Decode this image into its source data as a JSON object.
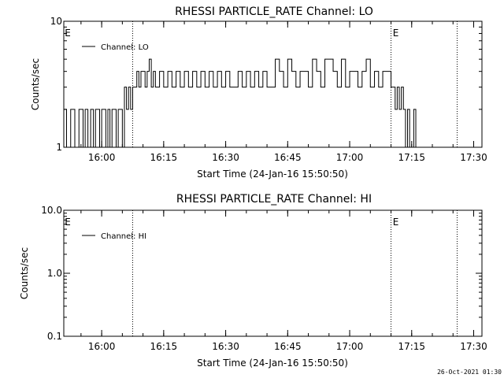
{
  "footer": {
    "timestamp": "26-Oct-2021 01:30"
  },
  "chart_data": [
    {
      "type": "line",
      "title": "RHESSI PARTICLE_RATE Channel: LO",
      "xlabel": "Start Time (24-Jan-16 15:50:50)",
      "ylabel": "Counts/sec",
      "y_scale": "log",
      "ylim": [
        1,
        10
      ],
      "xlim": [
        "15:50:50",
        "17:32:00"
      ],
      "x_ticks": [
        "16:00",
        "16:15",
        "16:30",
        "16:45",
        "17:00",
        "17:15",
        "17:30"
      ],
      "y_ticks": [
        "1",
        "10"
      ],
      "legend": {
        "position": "top-left",
        "entries": [
          "Channel: LO"
        ]
      },
      "markers": [
        {
          "time": "16:07:30",
          "label": "E"
        },
        {
          "time": "17:10:00",
          "label": "E"
        },
        {
          "time": "17:26:00",
          "label": ""
        }
      ],
      "series": [
        {
          "name": "Channel: LO",
          "x": [
            "15:50:50",
            "15:51:30",
            "15:52:00",
            "15:52:30",
            "15:53:30",
            "15:54:00",
            "15:54:30",
            "15:55:30",
            "15:56:00",
            "15:56:40",
            "15:57:20",
            "15:58:00",
            "15:58:30",
            "15:59:00",
            "15:59:30",
            "16:00:00",
            "16:00:30",
            "16:01:00",
            "16:01:30",
            "16:02:00",
            "16:02:30",
            "16:03:00",
            "16:03:30",
            "16:04:00",
            "16:04:30",
            "16:05:00",
            "16:05:30",
            "16:06:00",
            "16:06:30",
            "16:07:00",
            "16:07:30",
            "16:08:00",
            "16:08:30",
            "16:09:00",
            "16:09:30",
            "16:10:00",
            "16:10:30",
            "16:11:00",
            "16:11:30",
            "16:12:00",
            "16:12:30",
            "16:13:00",
            "16:14:00",
            "16:15:00",
            "16:16:00",
            "16:17:00",
            "16:18:00",
            "16:19:00",
            "16:20:00",
            "16:21:00",
            "16:22:00",
            "16:23:00",
            "16:24:00",
            "16:25:00",
            "16:26:00",
            "16:27:00",
            "16:28:00",
            "16:29:00",
            "16:30:00",
            "16:31:00",
            "16:32:00",
            "16:33:00",
            "16:34:00",
            "16:35:00",
            "16:36:00",
            "16:37:00",
            "16:38:00",
            "16:39:00",
            "16:40:00",
            "16:41:00",
            "16:42:00",
            "16:43:00",
            "16:44:00",
            "16:45:00",
            "16:46:00",
            "16:47:00",
            "16:48:00",
            "16:49:00",
            "16:50:00",
            "16:51:00",
            "16:52:00",
            "16:53:00",
            "16:54:00",
            "16:55:00",
            "16:56:00",
            "16:57:00",
            "16:58:00",
            "16:59:00",
            "17:00:00",
            "17:01:00",
            "17:02:00",
            "17:03:00",
            "17:04:00",
            "17:05:00",
            "17:06:00",
            "17:07:00",
            "17:08:00",
            "17:09:00",
            "17:10:00",
            "17:10:30",
            "17:11:00",
            "17:11:30",
            "17:12:00",
            "17:12:30",
            "17:13:00",
            "17:13:30",
            "17:14:00",
            "17:14:30",
            "17:15:00",
            "17:15:30",
            "17:16:00",
            "17:16:30",
            "17:17:00"
          ],
          "y": [
            2,
            1,
            1,
            2,
            1,
            1,
            2,
            1,
            2,
            1,
            2,
            1,
            2,
            2,
            1,
            2,
            2,
            1,
            2,
            1,
            2,
            2,
            1,
            2,
            2,
            1,
            3,
            2,
            3,
            2,
            3,
            3,
            4,
            3,
            4,
            4,
            3,
            4,
            5,
            3,
            4,
            3,
            4,
            3,
            4,
            3,
            4,
            3,
            4,
            3,
            4,
            3,
            4,
            3,
            4,
            3,
            4,
            3,
            4,
            3,
            3,
            4,
            3,
            4,
            3,
            4,
            3,
            4,
            3,
            3,
            5,
            4,
            3,
            5,
            4,
            3,
            4,
            4,
            3,
            5,
            4,
            3,
            5,
            5,
            4,
            3,
            5,
            3,
            4,
            4,
            3,
            4,
            5,
            3,
            4,
            3,
            4,
            4,
            3,
            3,
            2,
            3,
            2,
            3,
            2,
            1,
            2,
            1,
            1,
            2,
            1,
            1,
            1
          ]
        }
      ]
    },
    {
      "type": "line",
      "title": "RHESSI PARTICLE_RATE Channel: HI",
      "xlabel": "Start Time (24-Jan-16 15:50:50)",
      "ylabel": "Counts/sec",
      "y_scale": "log",
      "ylim": [
        0.1,
        10
      ],
      "xlim": [
        "15:50:50",
        "17:32:00"
      ],
      "x_ticks": [
        "16:00",
        "16:15",
        "16:30",
        "16:45",
        "17:00",
        "17:15",
        "17:30"
      ],
      "y_ticks": [
        "0.1",
        "1.0",
        "10.0"
      ],
      "legend": {
        "position": "top-left",
        "entries": [
          "Channel: HI"
        ]
      },
      "markers": [
        {
          "time": "16:07:30",
          "label": "E"
        },
        {
          "time": "17:10:00",
          "label": "E"
        },
        {
          "time": "17:26:00",
          "label": ""
        }
      ],
      "series": [
        {
          "name": "Channel: HI",
          "x": [],
          "y": []
        }
      ]
    }
  ]
}
